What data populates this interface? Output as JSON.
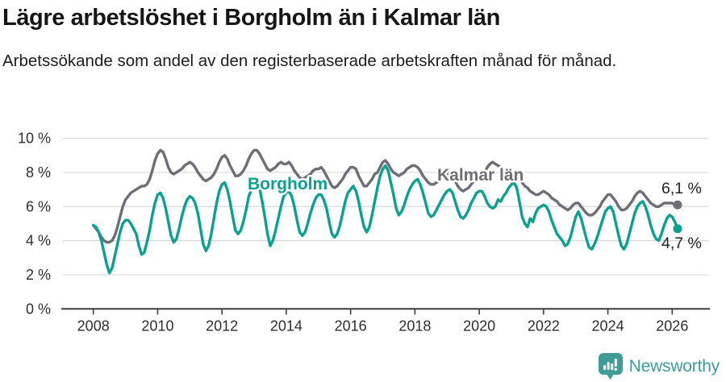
{
  "header": {
    "title": "Lägre arbetslöshet i Borgholm än i Kalmar län",
    "subtitle": "Arbetssökande som andel av den registerbaserade arbetskraften månad för månad."
  },
  "chart_data": {
    "type": "line",
    "frequency": "monthly",
    "x_start": "2008-01",
    "x_end": "2026-03",
    "grid": "horizontal",
    "ylim": [
      0,
      10
    ],
    "x_ticks": [
      "2008",
      "2010",
      "2012",
      "2014",
      "2016",
      "2018",
      "2020",
      "2022",
      "2024",
      "2026"
    ],
    "y_tick_labels": [
      "0 %",
      "2 %",
      "4 %",
      "6 %",
      "8 %",
      "10 %"
    ],
    "y_tick_values": [
      0,
      2,
      4,
      6,
      8,
      10
    ],
    "series": [
      {
        "name": "Kalmar län",
        "color": "#6e6e76",
        "end_label": "6,1 %",
        "end_value": 6.1,
        "values": [
          4.9,
          4.7,
          4.5,
          4.2,
          4.0,
          3.9,
          3.9,
          4.0,
          4.3,
          4.8,
          5.4,
          6.0,
          6.4,
          6.6,
          6.8,
          6.9,
          7.0,
          7.1,
          7.2,
          7.2,
          7.3,
          7.6,
          8.1,
          8.7,
          9.1,
          9.3,
          9.2,
          8.8,
          8.3,
          8.0,
          7.9,
          8.0,
          8.1,
          8.2,
          8.4,
          8.5,
          8.6,
          8.5,
          8.3,
          8.0,
          7.8,
          7.6,
          7.5,
          7.6,
          7.7,
          7.9,
          8.2,
          8.6,
          8.9,
          9.0,
          8.8,
          8.4,
          8.1,
          7.8,
          7.8,
          7.9,
          8.1,
          8.4,
          8.8,
          9.1,
          9.3,
          9.3,
          9.1,
          8.8,
          8.5,
          8.2,
          8.1,
          8.2,
          8.3,
          8.5,
          8.6,
          8.5,
          8.5,
          8.6,
          8.4,
          8.1,
          7.9,
          7.7,
          7.6,
          7.7,
          7.8,
          7.9,
          8.1,
          8.2,
          8.2,
          8.3,
          8.1,
          7.8,
          7.5,
          7.2,
          7.1,
          7.2,
          7.4,
          7.6,
          7.9,
          8.1,
          8.3,
          8.3,
          8.2,
          7.8,
          7.5,
          7.2,
          7.2,
          7.4,
          7.6,
          7.9,
          8.0,
          8.3,
          8.6,
          8.7,
          8.5,
          8.2,
          8.0,
          7.9,
          7.8,
          7.9,
          8.0,
          8.2,
          8.3,
          8.4,
          8.4,
          8.3,
          8.1,
          7.8,
          7.6,
          7.4,
          7.3,
          7.3,
          7.4,
          7.5,
          7.6,
          7.8,
          7.9,
          8.0,
          7.8,
          7.5,
          7.2,
          7.0,
          6.9,
          7.0,
          7.1,
          7.3,
          7.5,
          7.7,
          7.8,
          7.9,
          8.0,
          8.3,
          8.5,
          8.6,
          8.5,
          8.4,
          8.3,
          8.2,
          8.1,
          8.1,
          8.1,
          8.0,
          7.8,
          7.6,
          7.4,
          7.2,
          7.1,
          6.9,
          6.8,
          6.7,
          6.7,
          6.8,
          6.9,
          6.8,
          6.7,
          6.5,
          6.4,
          6.3,
          6.1,
          6.0,
          5.9,
          5.8,
          5.9,
          6.1,
          6.2,
          6.2,
          6.0,
          5.8,
          5.6,
          5.5,
          5.5,
          5.6,
          5.8,
          6.0,
          6.3,
          6.5,
          6.7,
          6.7,
          6.5,
          6.3,
          6.0,
          5.8,
          5.8,
          5.9,
          6.1,
          6.3,
          6.6,
          6.8,
          6.9,
          6.8,
          6.6,
          6.4,
          6.2,
          6.1,
          6.0,
          6.0,
          6.1,
          6.2,
          6.2,
          6.2,
          6.2,
          6.1,
          6.1
        ]
      },
      {
        "name": "Borgholm",
        "color": "#0aa18f",
        "end_label": "4,7 %",
        "end_value": 4.7,
        "values": [
          4.9,
          4.8,
          4.5,
          4.0,
          3.3,
          2.6,
          2.1,
          2.4,
          3.1,
          3.8,
          4.5,
          5.0,
          5.2,
          5.2,
          5.0,
          4.7,
          4.4,
          3.7,
          3.2,
          3.3,
          3.9,
          4.6,
          5.5,
          6.2,
          6.7,
          6.8,
          6.5,
          5.9,
          5.1,
          4.3,
          3.9,
          4.1,
          4.7,
          5.4,
          6.0,
          6.4,
          6.6,
          6.5,
          6.2,
          5.6,
          4.7,
          3.8,
          3.4,
          3.7,
          4.4,
          5.3,
          6.2,
          6.9,
          7.3,
          7.4,
          7.0,
          6.3,
          5.4,
          4.6,
          4.4,
          4.6,
          5.1,
          5.8,
          6.6,
          7.0,
          7.3,
          7.4,
          7.1,
          6.3,
          5.4,
          4.4,
          3.7,
          4.0,
          4.6,
          5.3,
          6.0,
          6.6,
          6.8,
          6.9,
          6.6,
          6.0,
          5.2,
          4.5,
          4.3,
          4.5,
          5.0,
          5.6,
          6.1,
          6.5,
          6.7,
          6.7,
          6.4,
          5.9,
          5.1,
          4.4,
          4.2,
          4.4,
          4.9,
          5.6,
          6.3,
          6.8,
          7.0,
          7.2,
          6.9,
          6.3,
          5.5,
          4.8,
          4.5,
          4.8,
          5.5,
          6.3,
          7.1,
          7.8,
          8.2,
          8.4,
          8.1,
          7.4,
          6.7,
          5.9,
          5.5,
          5.7,
          6.1,
          6.6,
          7.0,
          7.3,
          7.5,
          7.6,
          7.3,
          6.8,
          6.2,
          5.6,
          5.4,
          5.5,
          5.8,
          6.1,
          6.4,
          6.7,
          6.9,
          7.0,
          6.8,
          6.3,
          5.8,
          5.4,
          5.3,
          5.5,
          5.8,
          6.2,
          6.5,
          6.8,
          6.9,
          6.9,
          6.6,
          6.2,
          6.0,
          5.9,
          6.0,
          6.4,
          6.3,
          6.6,
          6.8,
          7.1,
          7.3,
          7.4,
          7.1,
          6.3,
          5.4,
          5.0,
          4.8,
          5.3,
          5.1,
          5.6,
          5.9,
          6.0,
          6.1,
          6.0,
          5.7,
          5.2,
          4.8,
          4.4,
          4.2,
          4.0,
          3.7,
          3.8,
          4.2,
          4.8,
          5.4,
          5.7,
          5.3,
          4.7,
          4.1,
          3.6,
          3.5,
          3.8,
          4.2,
          4.7,
          5.2,
          5.7,
          5.9,
          6.0,
          5.7,
          5.0,
          4.3,
          3.7,
          3.5,
          3.8,
          4.4,
          5.0,
          5.6,
          6.0,
          6.2,
          6.3,
          6.0,
          5.5,
          4.9,
          4.4,
          4.1,
          4.0,
          4.4,
          4.9,
          5.3,
          5.5,
          5.4,
          5.1,
          4.7
        ]
      }
    ]
  },
  "footer": {
    "brand": "Newsworthy"
  },
  "colors": {
    "borgholm": "#0aa18f",
    "kalmar": "#6e6e76",
    "brand": "#3e9d96",
    "grid": "#d9d9d9",
    "axis": "#3c3c3c"
  }
}
